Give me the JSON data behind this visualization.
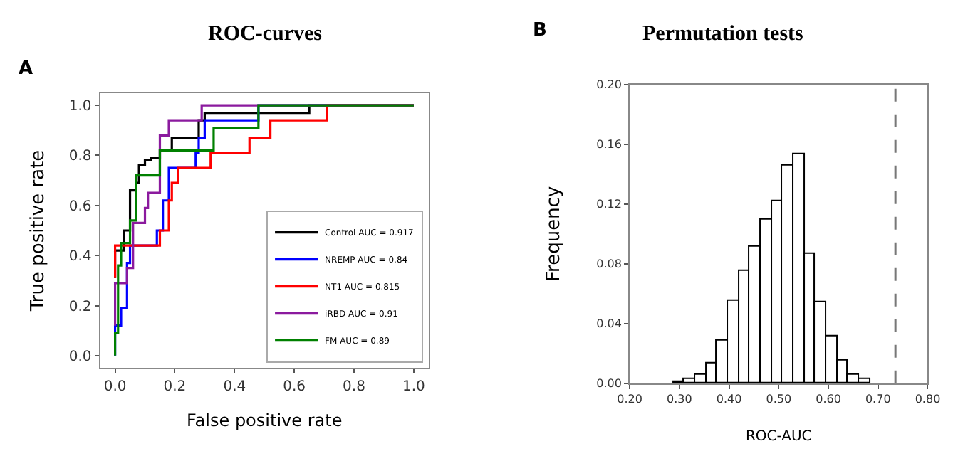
{
  "chart_data": [
    {
      "type": "line",
      "title": "ROC-curves",
      "xlabel": "False positive rate",
      "ylabel": "True positive rate",
      "annotations": [
        "A"
      ],
      "xlim": [
        -0.05,
        1.05
      ],
      "xticks": [
        {
          "value": 0,
          "label": "0.0"
        },
        0.2,
        0.4,
        0.6,
        0.8,
        {
          "value": 1,
          "label": "1.0"
        }
      ],
      "ylim": [
        -0.05,
        1.05
      ],
      "yticks": [
        {
          "value": 0,
          "label": "0.0"
        },
        0.2,
        0.4,
        0.6,
        0.8,
        {
          "value": 1,
          "label": "1.0"
        }
      ],
      "legend": "bottom right",
      "marker": "none",
      "line_style": "solid",
      "series": [
        {
          "name": "Control AUC = 0.917",
          "color": "#000000",
          "x": [
            0,
            0,
            0.03,
            0.03,
            0.05,
            0.05,
            0.07,
            0.07,
            0.08,
            0.08,
            0.1,
            0.1,
            0.12,
            0.12,
            0.15,
            0.15,
            0.19,
            0.19,
            0.28,
            0.28,
            0.3,
            0.3,
            0.65,
            0.65,
            1.0
          ],
          "values": [
            0.31,
            0.42,
            0.42,
            0.5,
            0.5,
            0.66,
            0.66,
            0.69,
            0.69,
            0.76,
            0.76,
            0.78,
            0.78,
            0.79,
            0.79,
            0.82,
            0.82,
            0.87,
            0.87,
            0.94,
            0.94,
            0.97,
            0.97,
            1.0,
            1.0
          ]
        },
        {
          "name": "NREMP AUC = 0.84",
          "color": "#0000ff",
          "x": [
            0,
            0,
            0.02,
            0.02,
            0.04,
            0.04,
            0.05,
            0.05,
            0.14,
            0.14,
            0.16,
            0.16,
            0.18,
            0.18,
            0.27,
            0.27,
            0.28,
            0.28,
            0.3,
            0.3,
            0.48,
            0.48,
            1.0
          ],
          "values": [
            0.0,
            0.12,
            0.12,
            0.19,
            0.19,
            0.37,
            0.37,
            0.44,
            0.44,
            0.5,
            0.5,
            0.62,
            0.62,
            0.75,
            0.75,
            0.81,
            0.81,
            0.87,
            0.87,
            0.94,
            0.94,
            1.0,
            1.0
          ]
        },
        {
          "name": "NT1 AUC = 0.815",
          "color": "#ff0000",
          "x": [
            0,
            0,
            0.15,
            0.15,
            0.18,
            0.18,
            0.19,
            0.19,
            0.21,
            0.21,
            0.32,
            0.32,
            0.45,
            0.45,
            0.52,
            0.52,
            0.71,
            0.71,
            1.0
          ],
          "values": [
            0.31,
            0.44,
            0.44,
            0.5,
            0.5,
            0.62,
            0.62,
            0.69,
            0.69,
            0.75,
            0.75,
            0.81,
            0.81,
            0.87,
            0.87,
            0.94,
            0.94,
            1.0,
            1.0
          ]
        },
        {
          "name": "iRBD AUC = 0.91",
          "color": "#8b1a9e",
          "x": [
            0,
            0,
            0.04,
            0.04,
            0.06,
            0.06,
            0.1,
            0.1,
            0.11,
            0.11,
            0.15,
            0.15,
            0.18,
            0.18,
            0.29,
            0.29,
            1.0
          ],
          "values": [
            0.12,
            0.29,
            0.29,
            0.35,
            0.35,
            0.53,
            0.53,
            0.59,
            0.59,
            0.65,
            0.65,
            0.88,
            0.88,
            0.94,
            0.94,
            1.0,
            1.0
          ]
        },
        {
          "name": "FM AUC = 0.89",
          "color": "#008000",
          "x": [
            0,
            0,
            0.01,
            0.01,
            0.02,
            0.02,
            0.05,
            0.05,
            0.07,
            0.07,
            0.15,
            0.15,
            0.33,
            0.33,
            0.48,
            0.48,
            1.0
          ],
          "values": [
            0.0,
            0.09,
            0.09,
            0.36,
            0.36,
            0.45,
            0.45,
            0.54,
            0.54,
            0.72,
            0.72,
            0.82,
            0.82,
            0.91,
            0.91,
            1.0,
            1.0
          ]
        }
      ]
    },
    {
      "type": "histogram",
      "title": "Permutation tests",
      "xlabel": "ROC-AUC",
      "ylabel": "Frequency",
      "annotations": [
        "B"
      ],
      "bins": [
        0.288,
        0.31,
        0.332,
        0.354,
        0.376,
        0.398,
        0.42,
        0.442,
        0.464,
        0.486,
        0.508,
        0.53,
        0.552,
        0.574,
        0.596,
        0.618,
        0.64,
        0.662,
        0.684
      ],
      "values": [
        0.001,
        0.003,
        0.006,
        0.013,
        0.029,
        0.055,
        0.075,
        0.091,
        0.11,
        0.122,
        0.146,
        0.153,
        0.087,
        0.054,
        0.031,
        0.015,
        0.006,
        0.003
      ],
      "color": "#ffffff",
      "xlim": [
        0.2,
        0.8
      ],
      "xticks": [
        {
          "value": 0.2,
          "label": "0.20"
        },
        {
          "value": 0.3,
          "label": "0.30"
        },
        {
          "value": 0.4,
          "label": "0.40"
        },
        {
          "value": 0.5,
          "label": "0.50"
        },
        {
          "value": 0.6,
          "label": "0.60"
        },
        {
          "value": 0.7,
          "label": "0.70"
        },
        {
          "value": 0.8,
          "label": "0.80"
        }
      ],
      "ylim": [
        0,
        0.2
      ],
      "yticks": [
        {
          "value": 0,
          "label": "0.00"
        },
        0.04,
        0.08,
        0.12,
        0.16,
        {
          "value": 0.2,
          "label": "0.20"
        }
      ],
      "legend": false,
      "ref_lines": [
        {
          "axis": "x",
          "value": 0.735,
          "color": "#777777",
          "line_style": "dashed"
        }
      ]
    }
  ]
}
